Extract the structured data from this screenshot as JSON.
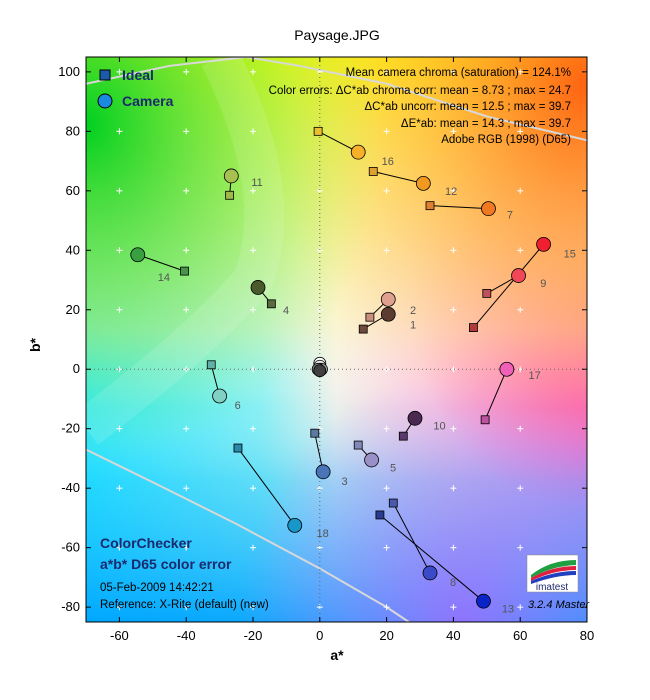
{
  "chart_data": {
    "type": "scatter",
    "title": "Paysage.JPG",
    "xlabel": "a*",
    "ylabel": "b*",
    "xlim": [
      -70,
      80
    ],
    "ylim": [
      -85,
      105
    ],
    "xticks": [
      -60,
      -40,
      -20,
      0,
      20,
      40,
      60,
      80
    ],
    "yticks": [
      -80,
      -60,
      -40,
      -20,
      0,
      20,
      40,
      60,
      80,
      100
    ],
    "legend": {
      "placement": "top-left",
      "entries": [
        "Ideal",
        "Camera"
      ]
    },
    "annotations": [
      "Mean camera chroma (saturation) = 124.1%",
      "Color errors: ΔC*ab chroma corr:  mean = 8.73 ;  max = 24.7",
      "ΔC*ab uncorr:  mean = 12.5 ;  max = 39.7",
      "ΔE*ab:  mean = 14.3 ;  max = 39.7",
      "Adobe RGB (1998) (D65)"
    ],
    "info": {
      "line1": "ColorChecker",
      "line2": "a*b* D65 color error",
      "line3": "05-Feb-2009 14:42:21",
      "line4": "Reference: X-Rite (default) (new)"
    },
    "version": "3.2.4  Master",
    "logo_text": "imatest",
    "patches": [
      {
        "n": "1",
        "ideal": [
          13,
          13.5
        ],
        "camera": [
          20.5,
          18.5
        ],
        "ideal_color": "#6e4a3c",
        "camera_color": "#5c3c30"
      },
      {
        "n": "2",
        "ideal": [
          15,
          17.5
        ],
        "camera": [
          20.5,
          23.5
        ],
        "ideal_color": "#c8907a",
        "camera_color": "#e0a090"
      },
      {
        "n": "3",
        "ideal": [
          -1.5,
          -21.5
        ],
        "camera": [
          1,
          -34.5
        ],
        "ideal_color": "#5a7aa0",
        "camera_color": "#4a74b8"
      },
      {
        "n": "4",
        "ideal": [
          -14.5,
          22
        ],
        "camera": [
          -18.5,
          27.5
        ],
        "ideal_color": "#5a6a40",
        "camera_color": "#4a5a2c"
      },
      {
        "n": "5",
        "ideal": [
          11.5,
          -25.5
        ],
        "camera": [
          15.5,
          -30.5
        ],
        "ideal_color": "#8288b8",
        "camera_color": "#9a90c8"
      },
      {
        "n": "6",
        "ideal": [
          -32.5,
          1.5
        ],
        "camera": [
          -30,
          -9
        ],
        "ideal_color": "#60b0a8",
        "camera_color": "#80d0c4"
      },
      {
        "n": "7",
        "ideal": [
          33,
          55
        ],
        "camera": [
          50.5,
          54
        ],
        "ideal_color": "#e08030",
        "camera_color": "#f07820"
      },
      {
        "n": "8",
        "ideal": [
          22,
          -45
        ],
        "camera": [
          33,
          -68.5
        ],
        "ideal_color": "#4a5ab0",
        "camera_color": "#3a4ac8"
      },
      {
        "n": "9",
        "ideal": [
          50,
          25.5
        ],
        "camera": [
          59.5,
          31.5
        ],
        "ideal_color": "#c0505a",
        "camera_color": "#f04858"
      },
      {
        "n": "10",
        "ideal": [
          25,
          -22.5
        ],
        "camera": [
          28.5,
          -16.5
        ],
        "ideal_color": "#5a3a6a",
        "camera_color": "#4a2a50"
      },
      {
        "n": "11",
        "ideal": [
          -27,
          58.5
        ],
        "camera": [
          -26.5,
          65
        ],
        "ideal_color": "#a0b848",
        "camera_color": "#a8c050"
      },
      {
        "n": "12",
        "ideal": [
          16,
          66.5
        ],
        "camera": [
          31,
          62.5
        ],
        "ideal_color": "#e0a030",
        "camera_color": "#f09820"
      },
      {
        "n": "13",
        "ideal": [
          18,
          -49
        ],
        "camera": [
          49,
          -78
        ],
        "ideal_color": "#2a3a90",
        "camera_color": "#0a24c8"
      },
      {
        "n": "14",
        "ideal": [
          -40.5,
          33
        ],
        "camera": [
          -54.5,
          38.5
        ],
        "ideal_color": "#4a944a",
        "camera_color": "#38a040"
      },
      {
        "n": "15",
        "ideal": [
          46,
          14
        ],
        "camera": [
          67,
          42
        ],
        "ideal_color": "#b03a3a",
        "camera_color": "#f02030"
      },
      {
        "n": "16",
        "ideal": [
          -0.5,
          80
        ],
        "camera": [
          11.5,
          73
        ],
        "ideal_color": "#e8c030",
        "camera_color": "#f8b028"
      },
      {
        "n": "17",
        "ideal": [
          49.5,
          -17
        ],
        "camera": [
          56,
          0
        ],
        "ideal_color": "#c050a0",
        "camera_color": "#f060b8"
      },
      {
        "n": "18",
        "ideal": [
          -24.5,
          -26.5
        ],
        "camera": [
          -7.5,
          -52.5
        ],
        "ideal_color": "#2a88a8",
        "camera_color": "#1898c8"
      }
    ],
    "neutral_points": [
      [
        0,
        2
      ],
      [
        0,
        1
      ],
      [
        0,
        0
      ],
      [
        0.5,
        0
      ],
      [
        -0.5,
        0
      ],
      [
        0,
        -0.5
      ]
    ],
    "point_labels": {
      "1": [
        27,
        15
      ],
      "2": [
        27,
        20
      ],
      "3": [
        6.5,
        -37.5
      ],
      "4": [
        -11,
        20
      ],
      "5": [
        21,
        -33
      ],
      "6": [
        -25.5,
        -12
      ],
      "7": [
        56,
        52
      ],
      "8": [
        39,
        -71.5
      ],
      "9": [
        66,
        29
      ],
      "10": [
        34,
        -19
      ],
      "11": [
        -20.5,
        63
      ],
      "12": [
        37.5,
        60
      ],
      "13": [
        54.5,
        -80.5
      ],
      "14": [
        -48.5,
        31
      ],
      "15": [
        73,
        39
      ],
      "16": [
        18.5,
        70
      ],
      "17": [
        62.5,
        -2
      ],
      "18": [
        -1,
        -55
      ]
    }
  }
}
